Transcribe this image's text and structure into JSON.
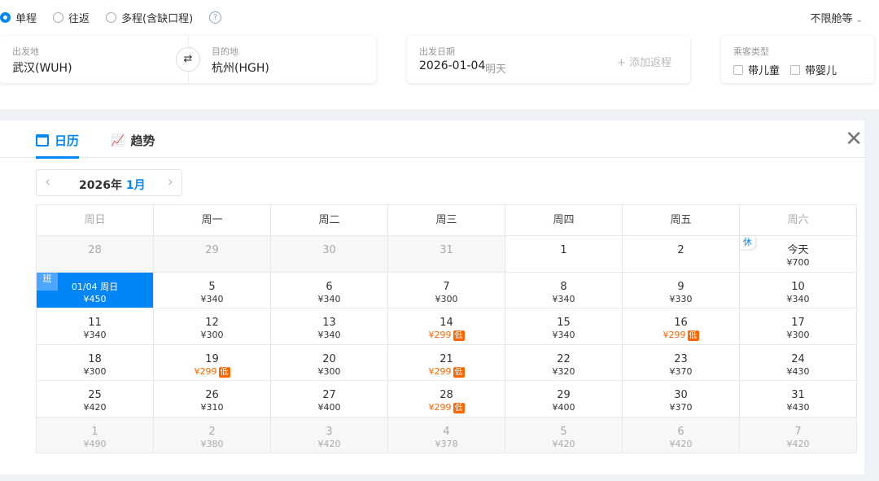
{
  "trip_types": [
    {
      "label": "单程",
      "selected": true
    },
    {
      "label": "往返",
      "selected": false
    },
    {
      "label": "多程(含缺口程)",
      "selected": false
    }
  ],
  "help_icon": "?",
  "cabin": "不限舱等",
  "from": {
    "label": "出发地",
    "value": "武汉(WUH)"
  },
  "to": {
    "label": "目的地",
    "value": "杭州(HGH)"
  },
  "date": {
    "label": "出发日期",
    "value": "2026-01-04",
    "note": "明天",
    "add_return": "+ 添加返程"
  },
  "passenger": {
    "label": "乘客类型",
    "child": "带儿童",
    "infant": "带婴儿"
  },
  "tabs": [
    {
      "label": "日历",
      "active": true
    },
    {
      "label": "趋势",
      "active": false
    }
  ],
  "month": {
    "year": "2026年",
    "month": "1月"
  },
  "weekdays": [
    "周日",
    "周一",
    "周二",
    "周三",
    "周四",
    "周五",
    "周六"
  ],
  "accent": "#0086f6",
  "low_color": "#ff6600",
  "weeks": [
    [
      {
        "d": "28",
        "muted": true
      },
      {
        "d": "29",
        "muted": true
      },
      {
        "d": "30",
        "muted": true
      },
      {
        "d": "31",
        "muted": true
      },
      {
        "d": "1"
      },
      {
        "d": "2"
      },
      {
        "d": "今天",
        "p": "¥700",
        "tag": "休"
      }
    ],
    [
      {
        "d": "01/04 周日",
        "p": "¥450",
        "tag": "班",
        "sel": true
      },
      {
        "d": "5",
        "p": "¥340"
      },
      {
        "d": "6",
        "p": "¥340"
      },
      {
        "d": "7",
        "p": "¥300"
      },
      {
        "d": "8",
        "p": "¥340"
      },
      {
        "d": "9",
        "p": "¥330"
      },
      {
        "d": "10",
        "p": "¥340"
      }
    ],
    [
      {
        "d": "11",
        "p": "¥340"
      },
      {
        "d": "12",
        "p": "¥300"
      },
      {
        "d": "13",
        "p": "¥340"
      },
      {
        "d": "14",
        "p": "¥299",
        "low": "低"
      },
      {
        "d": "15",
        "p": "¥340"
      },
      {
        "d": "16",
        "p": "¥299",
        "low": "低"
      },
      {
        "d": "17",
        "p": "¥300"
      }
    ],
    [
      {
        "d": "18",
        "p": "¥300"
      },
      {
        "d": "19",
        "p": "¥299",
        "low": "低"
      },
      {
        "d": "20",
        "p": "¥300"
      },
      {
        "d": "21",
        "p": "¥299",
        "low": "低"
      },
      {
        "d": "22",
        "p": "¥320"
      },
      {
        "d": "23",
        "p": "¥370"
      },
      {
        "d": "24",
        "p": "¥430"
      }
    ],
    [
      {
        "d": "25",
        "p": "¥420"
      },
      {
        "d": "26",
        "p": "¥310"
      },
      {
        "d": "27",
        "p": "¥400"
      },
      {
        "d": "28",
        "p": "¥299",
        "low": "低"
      },
      {
        "d": "29",
        "p": "¥400"
      },
      {
        "d": "30",
        "p": "¥370"
      },
      {
        "d": "31",
        "p": "¥430"
      }
    ],
    [
      {
        "d": "1",
        "p": "¥490",
        "muted": true
      },
      {
        "d": "2",
        "p": "¥380",
        "muted": true
      },
      {
        "d": "3",
        "p": "¥420",
        "muted": true
      },
      {
        "d": "4",
        "p": "¥378",
        "muted": true
      },
      {
        "d": "5",
        "p": "¥420",
        "muted": true
      },
      {
        "d": "6",
        "p": "¥420",
        "muted": true
      },
      {
        "d": "7",
        "p": "¥420",
        "muted": true
      }
    ]
  ]
}
